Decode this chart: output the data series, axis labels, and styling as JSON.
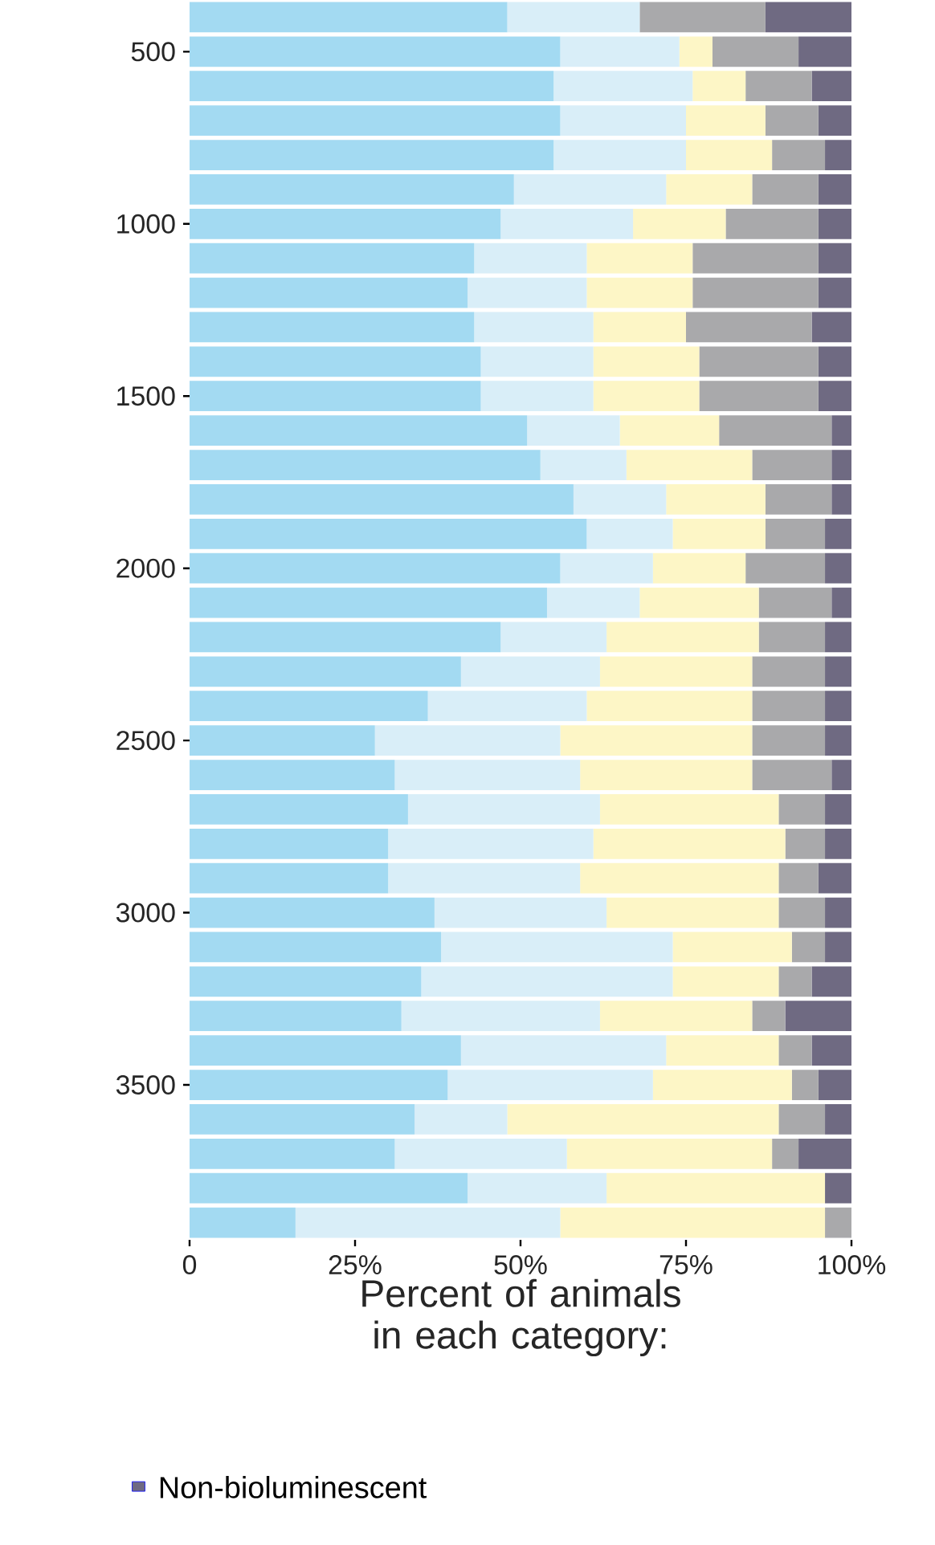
{
  "chart_data": {
    "type": "bar",
    "orientation": "horizontal",
    "stacked": true,
    "x": [
      400,
      500,
      600,
      700,
      800,
      900,
      1000,
      1100,
      1200,
      1300,
      1400,
      1500,
      1600,
      1700,
      1800,
      1900,
      2000,
      2100,
      2200,
      2300,
      2400,
      2500,
      2600,
      2700,
      2800,
      2900,
      3000,
      3100,
      3200,
      3300,
      3400,
      3500,
      3600,
      3700,
      3800,
      3900
    ],
    "series": [
      {
        "color": "#a3daf2",
        "values": [
          48,
          56,
          55,
          56,
          55,
          49,
          47,
          43,
          42,
          43,
          44,
          44,
          51,
          53,
          58,
          60,
          56,
          54,
          47,
          41,
          36,
          28,
          31,
          33,
          30,
          30,
          37,
          38,
          35,
          32,
          41,
          39,
          34,
          31,
          42,
          16
        ]
      },
      {
        "color": "#d9eef8",
        "values": [
          20,
          18,
          21,
          19,
          20,
          23,
          20,
          17,
          18,
          18,
          17,
          17,
          14,
          13,
          14,
          13,
          14,
          14,
          16,
          21,
          24,
          28,
          28,
          29,
          31,
          29,
          26,
          35,
          38,
          30,
          31,
          31,
          14,
          26,
          21,
          40
        ]
      },
      {
        "color": "#fdf6c6",
        "values": [
          0,
          5,
          8,
          12,
          13,
          13,
          14,
          16,
          16,
          14,
          16,
          16,
          15,
          19,
          15,
          14,
          14,
          18,
          23,
          23,
          25,
          29,
          26,
          27,
          29,
          30,
          26,
          18,
          16,
          23,
          17,
          21,
          41,
          31,
          33,
          40
        ]
      },
      {
        "color": "#a9a9ab",
        "values": [
          19,
          13,
          10,
          8,
          8,
          10,
          14,
          19,
          19,
          19,
          18,
          18,
          17,
          12,
          10,
          9,
          12,
          11,
          10,
          11,
          11,
          11,
          12,
          7,
          6,
          6,
          7,
          5,
          5,
          5,
          5,
          4,
          7,
          4,
          0,
          4
        ]
      },
      {
        "name": "Non-bioluminescent",
        "color": "#6f6a82",
        "values": [
          13,
          8,
          6,
          5,
          4,
          5,
          5,
          5,
          5,
          6,
          5,
          5,
          3,
          3,
          3,
          4,
          4,
          3,
          4,
          4,
          4,
          4,
          3,
          4,
          4,
          5,
          4,
          4,
          6,
          10,
          6,
          5,
          4,
          8,
          4,
          0
        ]
      }
    ],
    "xlim": [
      0,
      100
    ],
    "xticks": [
      0,
      {
        "value": 25,
        "label": "25%"
      },
      {
        "value": 50,
        "label": "50%"
      },
      {
        "value": 75,
        "label": "75%"
      },
      {
        "value": 100,
        "label": "100%"
      }
    ],
    "ylim": [
      3950,
      350
    ],
    "yticks": [
      500,
      1000,
      1500,
      2000,
      2500,
      3000,
      3500
    ],
    "xlabel": "Percent of animals in each category:",
    "legend": "bottom"
  }
}
